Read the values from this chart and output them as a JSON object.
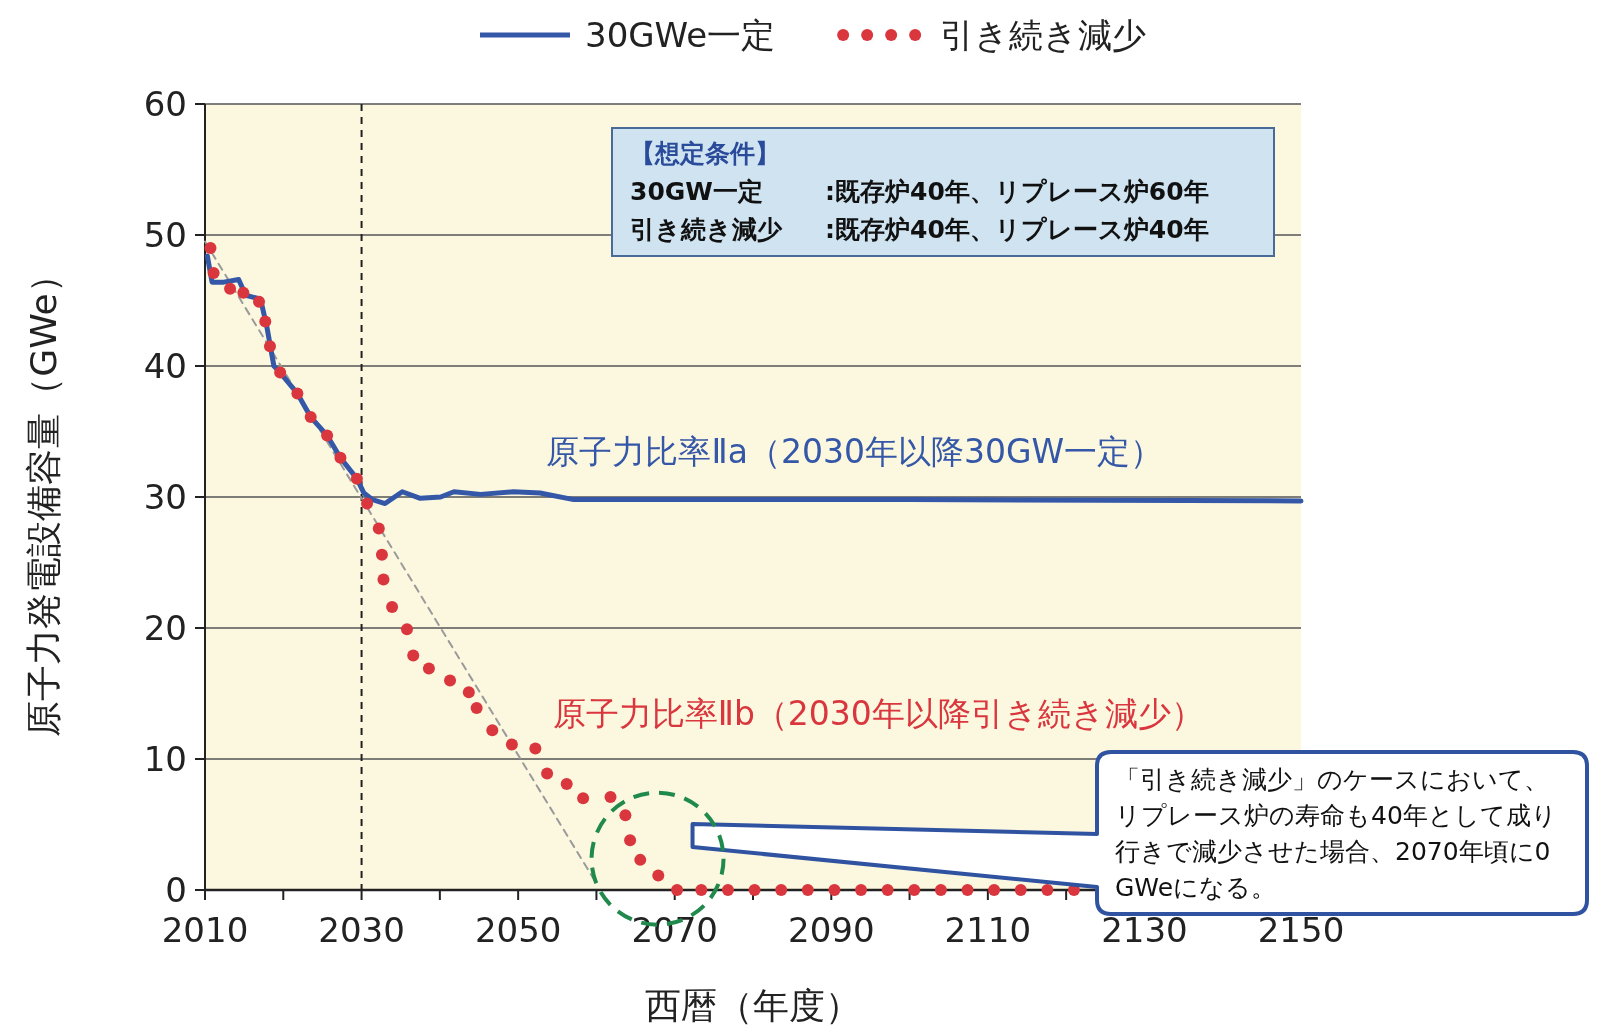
{
  "chart_data": {
    "type": "line",
    "xlabel": "西暦（年度）",
    "ylabel": "原子力発電設備容量（GWe）",
    "xlim": [
      2010,
      2150
    ],
    "ylim": [
      0,
      60
    ],
    "xticks": [
      2010,
      {
        "value": 2020,
        "label": null
      },
      2030,
      {
        "value": 2040,
        "label": null
      },
      2050,
      {
        "value": 2060,
        "label": null
      },
      2070,
      {
        "value": 2080,
        "label": null
      },
      2090,
      {
        "value": 2100,
        "label": null
      },
      2110,
      {
        "value": 2120,
        "label": null
      },
      2130,
      {
        "value": 2140,
        "label": null
      },
      2150
    ],
    "yticks": [
      0,
      10,
      20,
      30,
      40,
      50,
      60
    ],
    "grid": "y",
    "legend": "top",
    "series": [
      {
        "name": "30GWe一定",
        "line_style": "solid",
        "color": "#3557a8",
        "x": [
          2010.3,
          2010.9,
          2012.4,
          2014.3,
          2015.2,
          2017.1,
          2017.9,
          2018.8,
          2019.6,
          2021.8,
          2023.5,
          2025.6,
          2027.3,
          2029.4,
          2030.3,
          2031.4,
          2033.0,
          2035.2,
          2037.5,
          2040.1,
          2041.8,
          2045.2,
          2049.4,
          2052.8,
          2057.1,
          2070,
          2100,
          2150
        ],
        "values": [
          48.4,
          46.4,
          46.4,
          46.6,
          45.4,
          45.1,
          43.0,
          40.0,
          39.5,
          37.9,
          36.1,
          34.7,
          33.0,
          31.4,
          30.3,
          29.8,
          29.5,
          30.4,
          29.9,
          30.0,
          30.4,
          30.2,
          30.4,
          30.3,
          29.8,
          29.8,
          29.8,
          29.7
        ]
      },
      {
        "name": "引き続き減少",
        "type": "scatter",
        "marker": "circle",
        "color": "#d9363e",
        "x": [
          2010.7,
          2011.1,
          2013.2,
          2014.9,
          2016.9,
          2017.7,
          2018.3,
          2019.6,
          2021.8,
          2023.5,
          2025.6,
          2027.3,
          2029.4,
          2030.7,
          2032.2,
          2032.6,
          2032.8,
          2033.9,
          2035.8,
          2036.6,
          2038.6,
          2041.3,
          2043.7,
          2044.7,
          2046.7,
          2049.2,
          2052.2,
          2053.7,
          2056.2,
          2058.3,
          2061.8,
          2063.7,
          2064.3,
          2065.6,
          2067.9,
          2070.3,
          2073.4,
          2076.8,
          2080.2,
          2083.6,
          2087,
          2090.4,
          2093.8,
          2097.2,
          2100.6,
          2104,
          2107.4,
          2110.8,
          2114.2,
          2117.6,
          2121
        ],
        "values": [
          49.0,
          47.1,
          45.9,
          45.6,
          44.9,
          43.4,
          41.5,
          39.5,
          37.9,
          36.1,
          34.7,
          33.0,
          31.4,
          29.5,
          27.6,
          25.6,
          23.7,
          21.6,
          19.9,
          17.9,
          16.9,
          16.0,
          15.1,
          13.9,
          12.2,
          11.1,
          10.8,
          8.9,
          8.1,
          7.0,
          7.1,
          5.7,
          3.8,
          2.3,
          1.1,
          0,
          0,
          0,
          0,
          0,
          0,
          0,
          0,
          0,
          0,
          0,
          0,
          0,
          0,
          0,
          0
        ]
      },
      {
        "type": "line",
        "line_style": "dashed",
        "color": "#9a9a9a",
        "x": [
          2010,
          2060
        ],
        "values": [
          49.5,
          0.5
        ]
      }
    ],
    "ref_lines": [
      {
        "axis": "x",
        "value": 2030,
        "color": "#222222",
        "line_style": "dashed"
      }
    ],
    "annotations": [
      "【想定条件】",
      "30GW一定",
      ":既存炉40年、リプレース炉60年",
      "引き続き減少",
      ":既存炉40年、リプレース炉40年",
      "原子力比率Ⅱa（2030年以降30GW一定）",
      "原子力比率Ⅱb（2030年以降引き続き減少）",
      "「引き続き減少」のケースにおいて、リプレース炉の寿命も40年として成り行きで減少させた場合、2070年頃に0GWeになる。"
    ]
  }
}
